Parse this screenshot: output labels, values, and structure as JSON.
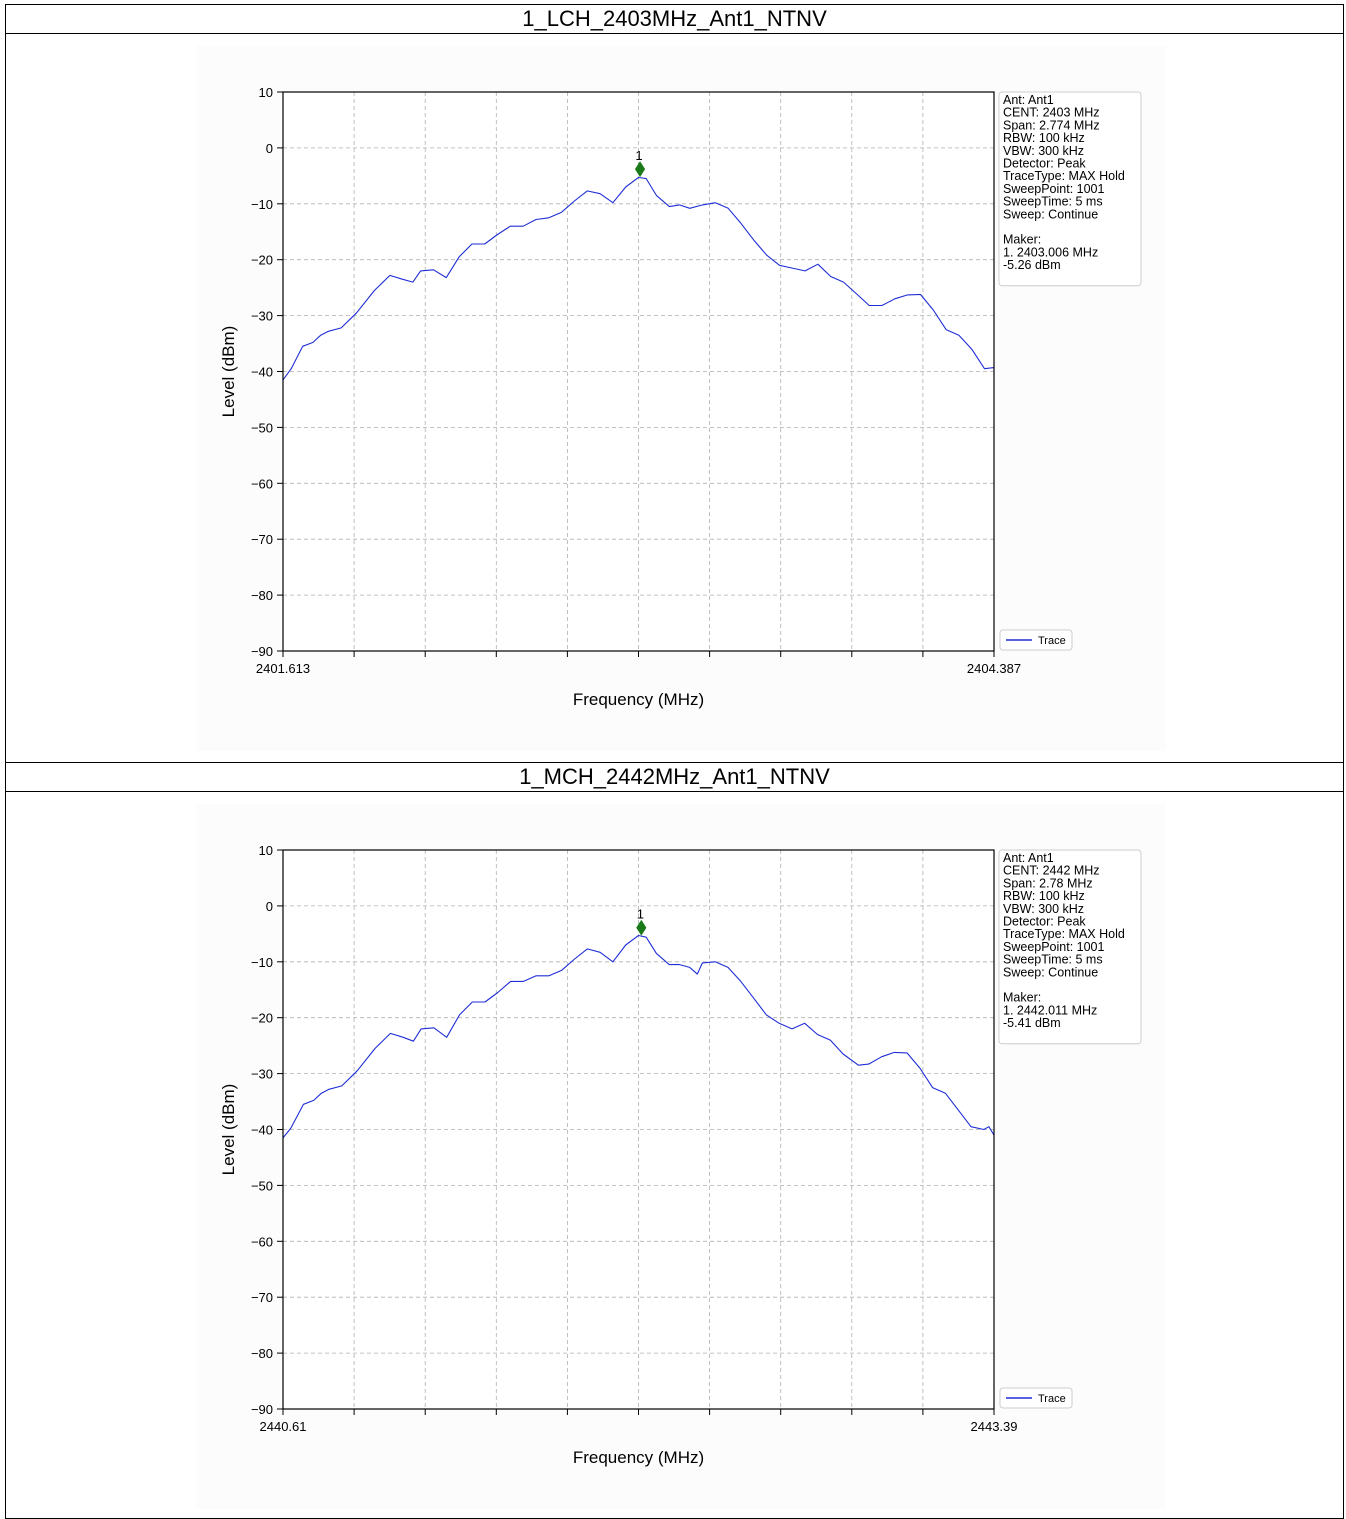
{
  "chart_data": [
    {
      "type": "line",
      "title": "1_LCH_2403MHz_Ant1_NTNV",
      "xlabel": "Frequency (MHz)",
      "ylabel": "Level (dBm)",
      "xlim": [
        2401.613,
        2404.387
      ],
      "ylim": [
        -90,
        10
      ],
      "x_tick_labels": [
        "2401.613",
        "2404.387"
      ],
      "y_ticks": [
        10,
        0,
        -10,
        -20,
        -30,
        -40,
        -50,
        -60,
        -70,
        -80,
        -90
      ],
      "grid": true,
      "legend": {
        "placement": "lower-right-outside",
        "entries": [
          "Trace"
        ]
      },
      "info_lines": [
        "Ant: Ant1",
        "CENT: 2403 MHz",
        "Span: 2.774 MHz",
        "RBW: 100 kHz",
        "VBW: 300 kHz",
        "Detector: Peak",
        "TraceType: MAX Hold",
        "SweepPoint: 1001",
        "SweepTime: 5 ms",
        "Sweep: Continue",
        "",
        "Maker:",
        "1. 2403.006 MHz",
        "    -5.26 dBm"
      ],
      "marker": {
        "label": "1",
        "x": 2403.006,
        "y": -3.8,
        "color": "#1a7a1a"
      },
      "series": [
        {
          "name": "Trace",
          "color": "#1f2ed6",
          "x": [
            2401.613,
            2401.645,
            2401.69,
            2401.73,
            2401.76,
            2401.79,
            2401.84,
            2401.9,
            2401.97,
            2402.03,
            2402.08,
            2402.12,
            2402.15,
            2402.2,
            2402.25,
            2402.3,
            2402.35,
            2402.4,
            2402.45,
            2402.5,
            2402.55,
            2402.6,
            2402.65,
            2402.7,
            2402.75,
            2402.8,
            2402.85,
            2402.9,
            2402.95,
            2403.0,
            2403.03,
            2403.07,
            2403.12,
            2403.16,
            2403.2,
            2403.25,
            2403.3,
            2403.35,
            2403.4,
            2403.45,
            2403.5,
            2403.55,
            2403.6,
            2403.65,
            2403.7,
            2403.75,
            2403.8,
            2403.86,
            2403.9,
            2403.95,
            2404.0,
            2404.05,
            2404.1,
            2404.15,
            2404.2,
            2404.25,
            2404.3,
            2404.35,
            2404.387
          ],
          "y": [
            -41.5,
            -39.5,
            -35.5,
            -34.8,
            -33.5,
            -32.8,
            -32.2,
            -29.5,
            -25.5,
            -22.8,
            -23.5,
            -24,
            -22,
            -21.8,
            -23.2,
            -19.5,
            -17.2,
            -17.2,
            -15.5,
            -14,
            -14,
            -12.8,
            -12.5,
            -11.5,
            -9.5,
            -7.7,
            -8.2,
            -9.8,
            -7,
            -5.3,
            -5.5,
            -8.5,
            -10.5,
            -10.2,
            -10.8,
            -10.2,
            -9.8,
            -10.8,
            -13.5,
            -16.5,
            -19.2,
            -21,
            -21.5,
            -22,
            -20.8,
            -23,
            -24,
            -26.5,
            -28.2,
            -28.2,
            -27,
            -26.3,
            -26.2,
            -29,
            -32.5,
            -33.5,
            -36,
            -39.5,
            -39.3
          ]
        }
      ]
    },
    {
      "type": "line",
      "title": "1_MCH_2442MHz_Ant1_NTNV",
      "xlabel": "Frequency (MHz)",
      "ylabel": "Level (dBm)",
      "xlim": [
        2440.61,
        2443.39
      ],
      "ylim": [
        -90,
        10
      ],
      "x_tick_labels": [
        "2440.61",
        "2443.39"
      ],
      "y_ticks": [
        10,
        0,
        -10,
        -20,
        -30,
        -40,
        -50,
        -60,
        -70,
        -80,
        -90
      ],
      "grid": true,
      "legend": {
        "placement": "lower-right-outside",
        "entries": [
          "Trace"
        ]
      },
      "info_lines": [
        "Ant: Ant1",
        "CENT: 2442 MHz",
        "Span: 2.78 MHz",
        "RBW: 100 kHz",
        "VBW: 300 kHz",
        "Detector: Peak",
        "TraceType: MAX Hold",
        "SweepPoint: 1001",
        "SweepTime: 5 ms",
        "Sweep: Continue",
        "",
        "Maker:",
        "1. 2442.011 MHz",
        "    -5.41 dBm"
      ],
      "marker": {
        "label": "1",
        "x": 2442.011,
        "y": -3.9,
        "color": "#1a7a1a"
      },
      "series": [
        {
          "name": "Trace",
          "color": "#1f2ed6",
          "x": [
            2440.61,
            2440.64,
            2440.69,
            2440.73,
            2440.76,
            2440.79,
            2440.84,
            2440.9,
            2440.97,
            2441.03,
            2441.08,
            2441.12,
            2441.15,
            2441.2,
            2441.25,
            2441.3,
            2441.35,
            2441.4,
            2441.45,
            2441.5,
            2441.55,
            2441.6,
            2441.65,
            2441.7,
            2441.75,
            2441.8,
            2441.85,
            2441.9,
            2441.95,
            2442.0,
            2442.03,
            2442.07,
            2442.12,
            2442.16,
            2442.2,
            2442.23,
            2442.25,
            2442.3,
            2442.35,
            2442.4,
            2442.45,
            2442.5,
            2442.55,
            2442.6,
            2442.65,
            2442.7,
            2442.75,
            2442.8,
            2442.86,
            2442.9,
            2442.95,
            2443.0,
            2443.05,
            2443.1,
            2443.15,
            2443.2,
            2443.25,
            2443.3,
            2443.35,
            2443.37,
            2443.39
          ],
          "y": [
            -41.5,
            -39.8,
            -35.5,
            -34.8,
            -33.5,
            -32.8,
            -32.2,
            -29.5,
            -25.5,
            -22.8,
            -23.5,
            -24.2,
            -22,
            -21.8,
            -23.5,
            -19.5,
            -17.2,
            -17.2,
            -15.5,
            -13.5,
            -13.5,
            -12.5,
            -12.5,
            -11.5,
            -9.5,
            -7.7,
            -8.3,
            -10,
            -7,
            -5.3,
            -5.6,
            -8.5,
            -10.5,
            -10.5,
            -11,
            -12.2,
            -10.2,
            -10,
            -11,
            -13.5,
            -16.5,
            -19.5,
            -21,
            -22,
            -21,
            -23,
            -24,
            -26.5,
            -28.5,
            -28.3,
            -27,
            -26.2,
            -26.3,
            -29,
            -32.5,
            -33.5,
            -36.5,
            -39.5,
            -40,
            -39.5,
            -41
          ]
        }
      ]
    }
  ]
}
